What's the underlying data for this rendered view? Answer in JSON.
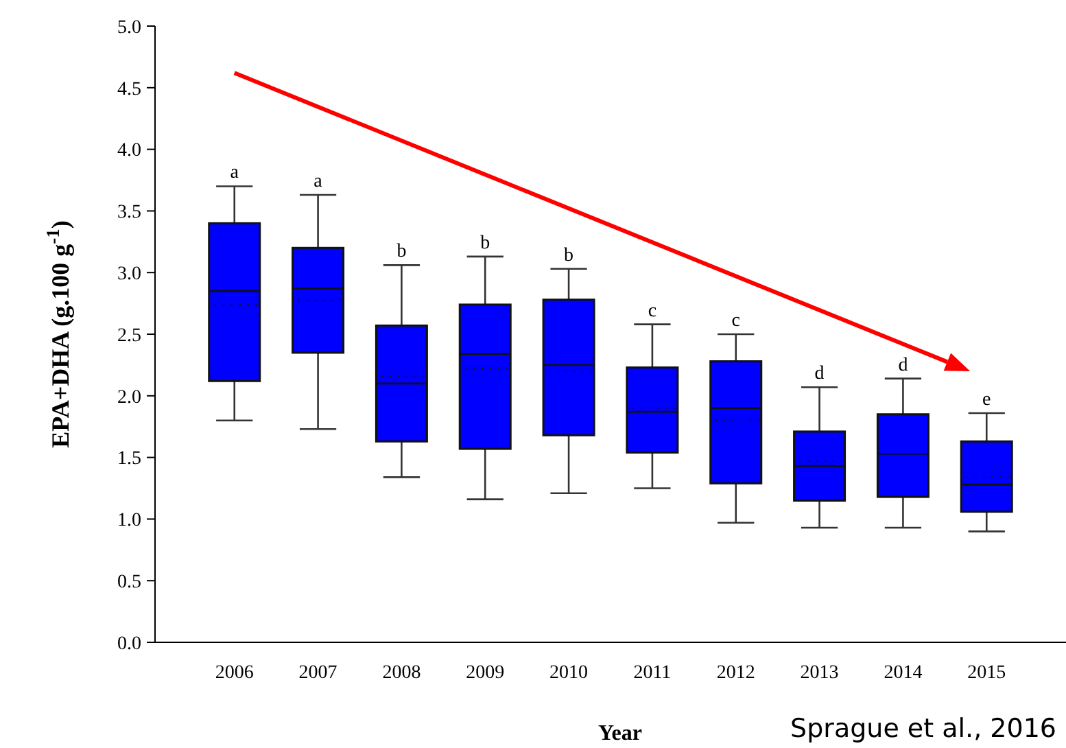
{
  "chart_data": {
    "type": "box",
    "xlabel": "Year",
    "ylabel": "EPA+DHA (g.100 g$^{-1}$)",
    "categories": [
      "2006",
      "2007",
      "2008",
      "2009",
      "2010",
      "2011",
      "2012",
      "2013",
      "2014",
      "2015"
    ],
    "color": "#0000ff",
    "boxes": [
      {
        "low": 1.8,
        "q1": 2.12,
        "median": 2.85,
        "q3": 3.4,
        "high": 3.7,
        "mean": 2.74
      },
      {
        "low": 1.73,
        "q1": 2.35,
        "median": 2.87,
        "q3": 3.2,
        "high": 3.63,
        "mean": 2.78
      },
      {
        "low": 1.34,
        "q1": 1.63,
        "median": 2.1,
        "q3": 2.57,
        "high": 3.06,
        "mean": 2.16
      },
      {
        "low": 1.16,
        "q1": 1.57,
        "median": 2.34,
        "q3": 2.74,
        "high": 3.13,
        "mean": 2.22
      },
      {
        "low": 1.21,
        "q1": 1.68,
        "median": 2.25,
        "q3": 2.78,
        "high": 3.03,
        "mean": 2.2
      },
      {
        "low": 1.25,
        "q1": 1.54,
        "median": 1.87,
        "q3": 2.23,
        "high": 2.58,
        "mean": 1.9
      },
      {
        "low": 0.97,
        "q1": 1.29,
        "median": 1.9,
        "q3": 2.28,
        "high": 2.5,
        "mean": 1.8
      },
      {
        "low": 0.93,
        "q1": 1.15,
        "median": 1.43,
        "q3": 1.71,
        "high": 2.07,
        "mean": 1.47
      },
      {
        "low": 0.93,
        "q1": 1.18,
        "median": 1.53,
        "q3": 1.85,
        "high": 2.14,
        "mean": 1.53
      },
      {
        "low": 0.9,
        "q1": 1.06,
        "median": 1.28,
        "q3": 1.63,
        "high": 1.86,
        "mean": 1.34
      }
    ],
    "ylim": [
      0,
      5
    ],
    "yticks": [
      {
        "value": 0,
        "label": "0.0"
      },
      {
        "value": 0.5,
        "label": "0.5"
      },
      {
        "value": 1,
        "label": "1.0"
      },
      {
        "value": 1.5,
        "label": "1.5"
      },
      {
        "value": 2,
        "label": "2.0"
      },
      {
        "value": 2.5,
        "label": "2.5"
      },
      {
        "value": 3,
        "label": "3.0"
      },
      {
        "value": 3.5,
        "label": "3.5"
      },
      {
        "value": 4,
        "label": "4.0"
      },
      {
        "value": 4.5,
        "label": "4.5"
      },
      {
        "value": 5,
        "label": "5.0"
      }
    ],
    "grid": false,
    "annotations": [
      {
        "text": "a",
        "x": "2006",
        "y": 3.7
      },
      {
        "text": "a",
        "x": "2007",
        "y": 3.63
      },
      {
        "text": "b",
        "x": "2008",
        "y": 3.06
      },
      {
        "text": "b",
        "x": "2009",
        "y": 3.13
      },
      {
        "text": "b",
        "x": "2010",
        "y": 3.03
      },
      {
        "text": "c",
        "x": "2011",
        "y": 2.58
      },
      {
        "text": "c",
        "x": "2012",
        "y": 2.5
      },
      {
        "text": "d",
        "x": "2013",
        "y": 2.07
      },
      {
        "text": "d",
        "x": "2014",
        "y": 2.14
      },
      {
        "text": "e",
        "x": "2015",
        "y": 1.86
      },
      "Sprague et al., 2016"
    ]
  }
}
